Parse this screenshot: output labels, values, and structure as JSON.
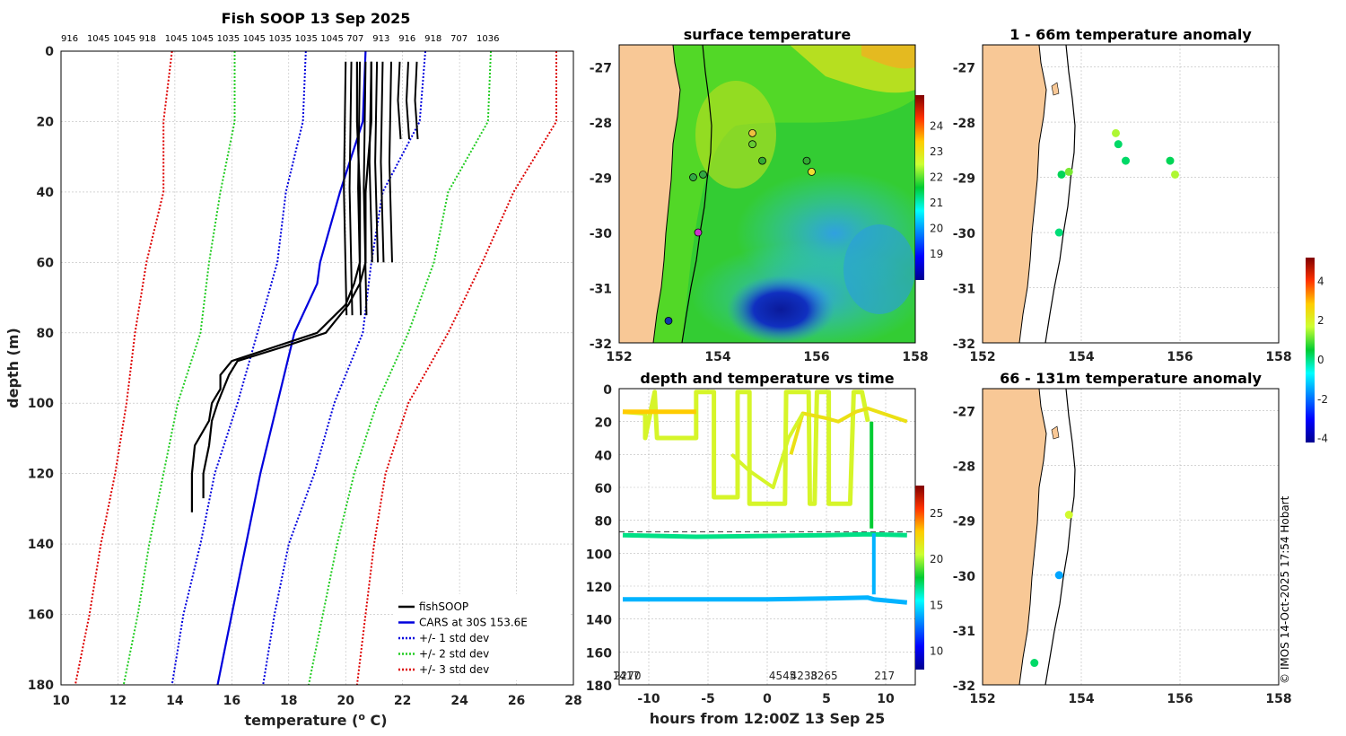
{
  "copyright": "© IMOS 14-Oct-2025 17:54 Hobart",
  "colors": {
    "land": "#F8C896",
    "fishsoop": "#000000",
    "cars": "#0000DD",
    "std1": "#0000DD",
    "std2": "#22CC22",
    "std3": "#DD0000"
  },
  "chart_data": [
    {
      "type": "line",
      "title": "Fish SOOP 13 Sep 2025",
      "xlabel": "temperature (o C)",
      "ylabel": "depth (m)",
      "xlim": [
        10,
        28
      ],
      "ylim": [
        180,
        0
      ],
      "xticks": [
        "10",
        "12",
        "14",
        "16",
        "18",
        "20",
        "22",
        "24",
        "26",
        "28"
      ],
      "yticks": [
        "0",
        "20",
        "40",
        "60",
        "80",
        "100",
        "120",
        "140",
        "160",
        "180"
      ],
      "top_ids": [
        "916",
        "1045",
        "1045",
        "918",
        "1045",
        "1045",
        "1035",
        "1045",
        "1035",
        "1035",
        "1045",
        "707",
        "913",
        "916",
        "918",
        "707",
        "1036"
      ],
      "legend": [
        "fishSOOP",
        "CARS at 30S 153.6E",
        "+/- 1 std dev",
        "+/- 2 std dev",
        "+/- 3 std dev"
      ],
      "series": [
        {
          "name": "CARS mean",
          "depths": [
            0,
            20,
            40,
            60,
            66,
            80,
            100,
            120,
            140,
            160,
            180
          ],
          "values": [
            20.7,
            20.6,
            19.8,
            19.1,
            19.0,
            18.2,
            17.6,
            17.0,
            16.5,
            16.0,
            15.5
          ]
        },
        {
          "name": "-1 std",
          "depths": [
            0,
            20,
            40,
            60,
            80,
            100,
            120,
            140,
            160,
            180
          ],
          "values": [
            18.6,
            18.5,
            17.9,
            17.6,
            16.9,
            16.2,
            15.4,
            14.9,
            14.3,
            13.9
          ]
        },
        {
          "name": "+1 std",
          "depths": [
            0,
            20,
            40,
            60,
            80,
            100,
            120,
            140,
            160,
            180
          ],
          "values": [
            22.8,
            22.6,
            21.3,
            20.9,
            20.6,
            19.6,
            18.9,
            18.0,
            17.5,
            17.1
          ]
        },
        {
          "name": "-2 std",
          "depths": [
            0,
            20,
            40,
            60,
            80,
            100,
            120,
            140,
            160,
            180
          ],
          "values": [
            16.1,
            16.1,
            15.6,
            15.2,
            14.9,
            14.1,
            13.6,
            13.1,
            12.7,
            12.2
          ]
        },
        {
          "name": "+2 std",
          "depths": [
            0,
            20,
            40,
            60,
            80,
            100,
            120,
            140,
            160,
            180
          ],
          "values": [
            25.1,
            25.0,
            23.6,
            23.1,
            22.2,
            21.1,
            20.3,
            19.7,
            19.2,
            18.7
          ]
        },
        {
          "name": "-3 std",
          "depths": [
            0,
            20,
            40,
            60,
            80,
            100,
            120,
            140,
            160,
            180
          ],
          "values": [
            13.9,
            13.6,
            13.6,
            13.0,
            12.6,
            12.3,
            11.9,
            11.4,
            11.0,
            10.5
          ]
        },
        {
          "name": "+3 std",
          "depths": [
            0,
            20,
            40,
            60,
            80,
            100,
            120,
            140,
            160,
            180
          ],
          "values": [
            27.4,
            27.4,
            25.9,
            24.8,
            23.6,
            22.2,
            21.4,
            21.0,
            20.7,
            20.4
          ]
        },
        {
          "name": "fishSOOP profile A",
          "depths": [
            3,
            20,
            40,
            60,
            66,
            72,
            80,
            84,
            88,
            92,
            96,
            100,
            105,
            112,
            120,
            128,
            131
          ],
          "values": [
            20.4,
            20.4,
            20.5,
            20.5,
            20.3,
            20.0,
            19.0,
            17.5,
            16.0,
            15.6,
            15.6,
            15.3,
            15.2,
            14.7,
            14.6,
            14.6,
            14.6
          ]
        },
        {
          "name": "fishSOOP profile B",
          "depths": [
            3,
            20,
            40,
            60,
            66,
            72,
            80,
            84,
            88,
            92,
            96,
            100,
            105,
            112,
            120,
            127
          ],
          "values": [
            20.9,
            20.9,
            20.7,
            20.7,
            20.5,
            20.1,
            19.3,
            17.8,
            16.2,
            15.9,
            15.7,
            15.5,
            15.3,
            15.2,
            15.0,
            15.0
          ]
        }
      ]
    },
    {
      "type": "heatmap",
      "title": "surface temperature",
      "xlim": [
        152,
        158
      ],
      "ylim": [
        -32,
        -26.6
      ],
      "xticks": [
        "152",
        "154",
        "156",
        "158"
      ],
      "yticks": [
        "-27",
        "-28",
        "-29",
        "-30",
        "-31",
        "-32"
      ],
      "colorbar_ticks": [
        "19",
        "20",
        "21",
        "22",
        "23",
        "24"
      ],
      "stations": [
        {
          "lon": 154.7,
          "lat": -28.2,
          "color": "#F0C040"
        },
        {
          "lon": 154.7,
          "lat": -28.4,
          "color": "#66CC33"
        },
        {
          "lon": 154.9,
          "lat": -28.7,
          "color": "#33AA33"
        },
        {
          "lon": 155.8,
          "lat": -28.7,
          "color": "#33AA33"
        },
        {
          "lon": 155.9,
          "lat": -28.9,
          "color": "#EEDD33"
        },
        {
          "lon": 153.7,
          "lat": -28.95,
          "color": "#33AA44"
        },
        {
          "lon": 153.5,
          "lat": -29.0,
          "color": "#33AA44"
        },
        {
          "lon": 153.6,
          "lat": -30.0,
          "color": "#CC33CC"
        },
        {
          "lon": 153.0,
          "lat": -31.6,
          "color": "#1133AA"
        }
      ]
    },
    {
      "type": "scatter",
      "title": "depth and temperature vs time",
      "xlabel": "hours from 12:00Z 13 Sep 25",
      "xlim": [
        -12.5,
        12.5
      ],
      "ylim": [
        180,
        0
      ],
      "xticks": [
        "-10",
        "-5",
        "0",
        "5",
        "10"
      ],
      "yticks": [
        "0",
        "20",
        "40",
        "60",
        "80",
        "100",
        "120",
        "140",
        "160",
        "180"
      ],
      "colorbar_ticks": [
        "10",
        "15",
        "20",
        "25"
      ],
      "bottom_ids": [
        "1417",
        "2270",
        "4545",
        "4238",
        "3265",
        "217"
      ],
      "reference_depth": 87
    },
    {
      "type": "scatter",
      "title": "1 - 66m temperature anomaly",
      "xlim": [
        152,
        158
      ],
      "ylim": [
        -32,
        -26.6
      ],
      "xticks": [
        "152",
        "154",
        "156",
        "158"
      ],
      "yticks": [
        "-27",
        "-28",
        "-29",
        "-30",
        "-31",
        "-32"
      ],
      "points": [
        {
          "lon": 154.7,
          "lat": -28.2,
          "anomaly": 1.5
        },
        {
          "lon": 154.75,
          "lat": -28.4,
          "anomaly": 0.2
        },
        {
          "lon": 154.9,
          "lat": -28.7,
          "anomaly": 0.2
        },
        {
          "lon": 155.8,
          "lat": -28.7,
          "anomaly": 0.3
        },
        {
          "lon": 155.9,
          "lat": -28.95,
          "anomaly": 1.5
        },
        {
          "lon": 153.75,
          "lat": -28.9,
          "anomaly": 1.2
        },
        {
          "lon": 153.6,
          "lat": -28.95,
          "anomaly": 0.3
        },
        {
          "lon": 153.55,
          "lat": -30.0,
          "anomaly": 0.1
        }
      ]
    },
    {
      "type": "scatter",
      "title": "66 - 131m temperature anomaly",
      "xlim": [
        152,
        158
      ],
      "ylim": [
        -32,
        -26.6
      ],
      "xticks": [
        "152",
        "154",
        "156",
        "158"
      ],
      "yticks": [
        "-27",
        "-28",
        "-29",
        "-30",
        "-31",
        "-32"
      ],
      "colorbar_ticks": [
        "4",
        "2",
        "0",
        "-2",
        "-4"
      ],
      "points": [
        {
          "lon": 153.75,
          "lat": -28.9,
          "anomaly": 1.8
        },
        {
          "lon": 153.55,
          "lat": -30.0,
          "anomaly": -1.5
        },
        {
          "lon": 153.05,
          "lat": -31.6,
          "anomaly": 0.2
        }
      ]
    }
  ]
}
